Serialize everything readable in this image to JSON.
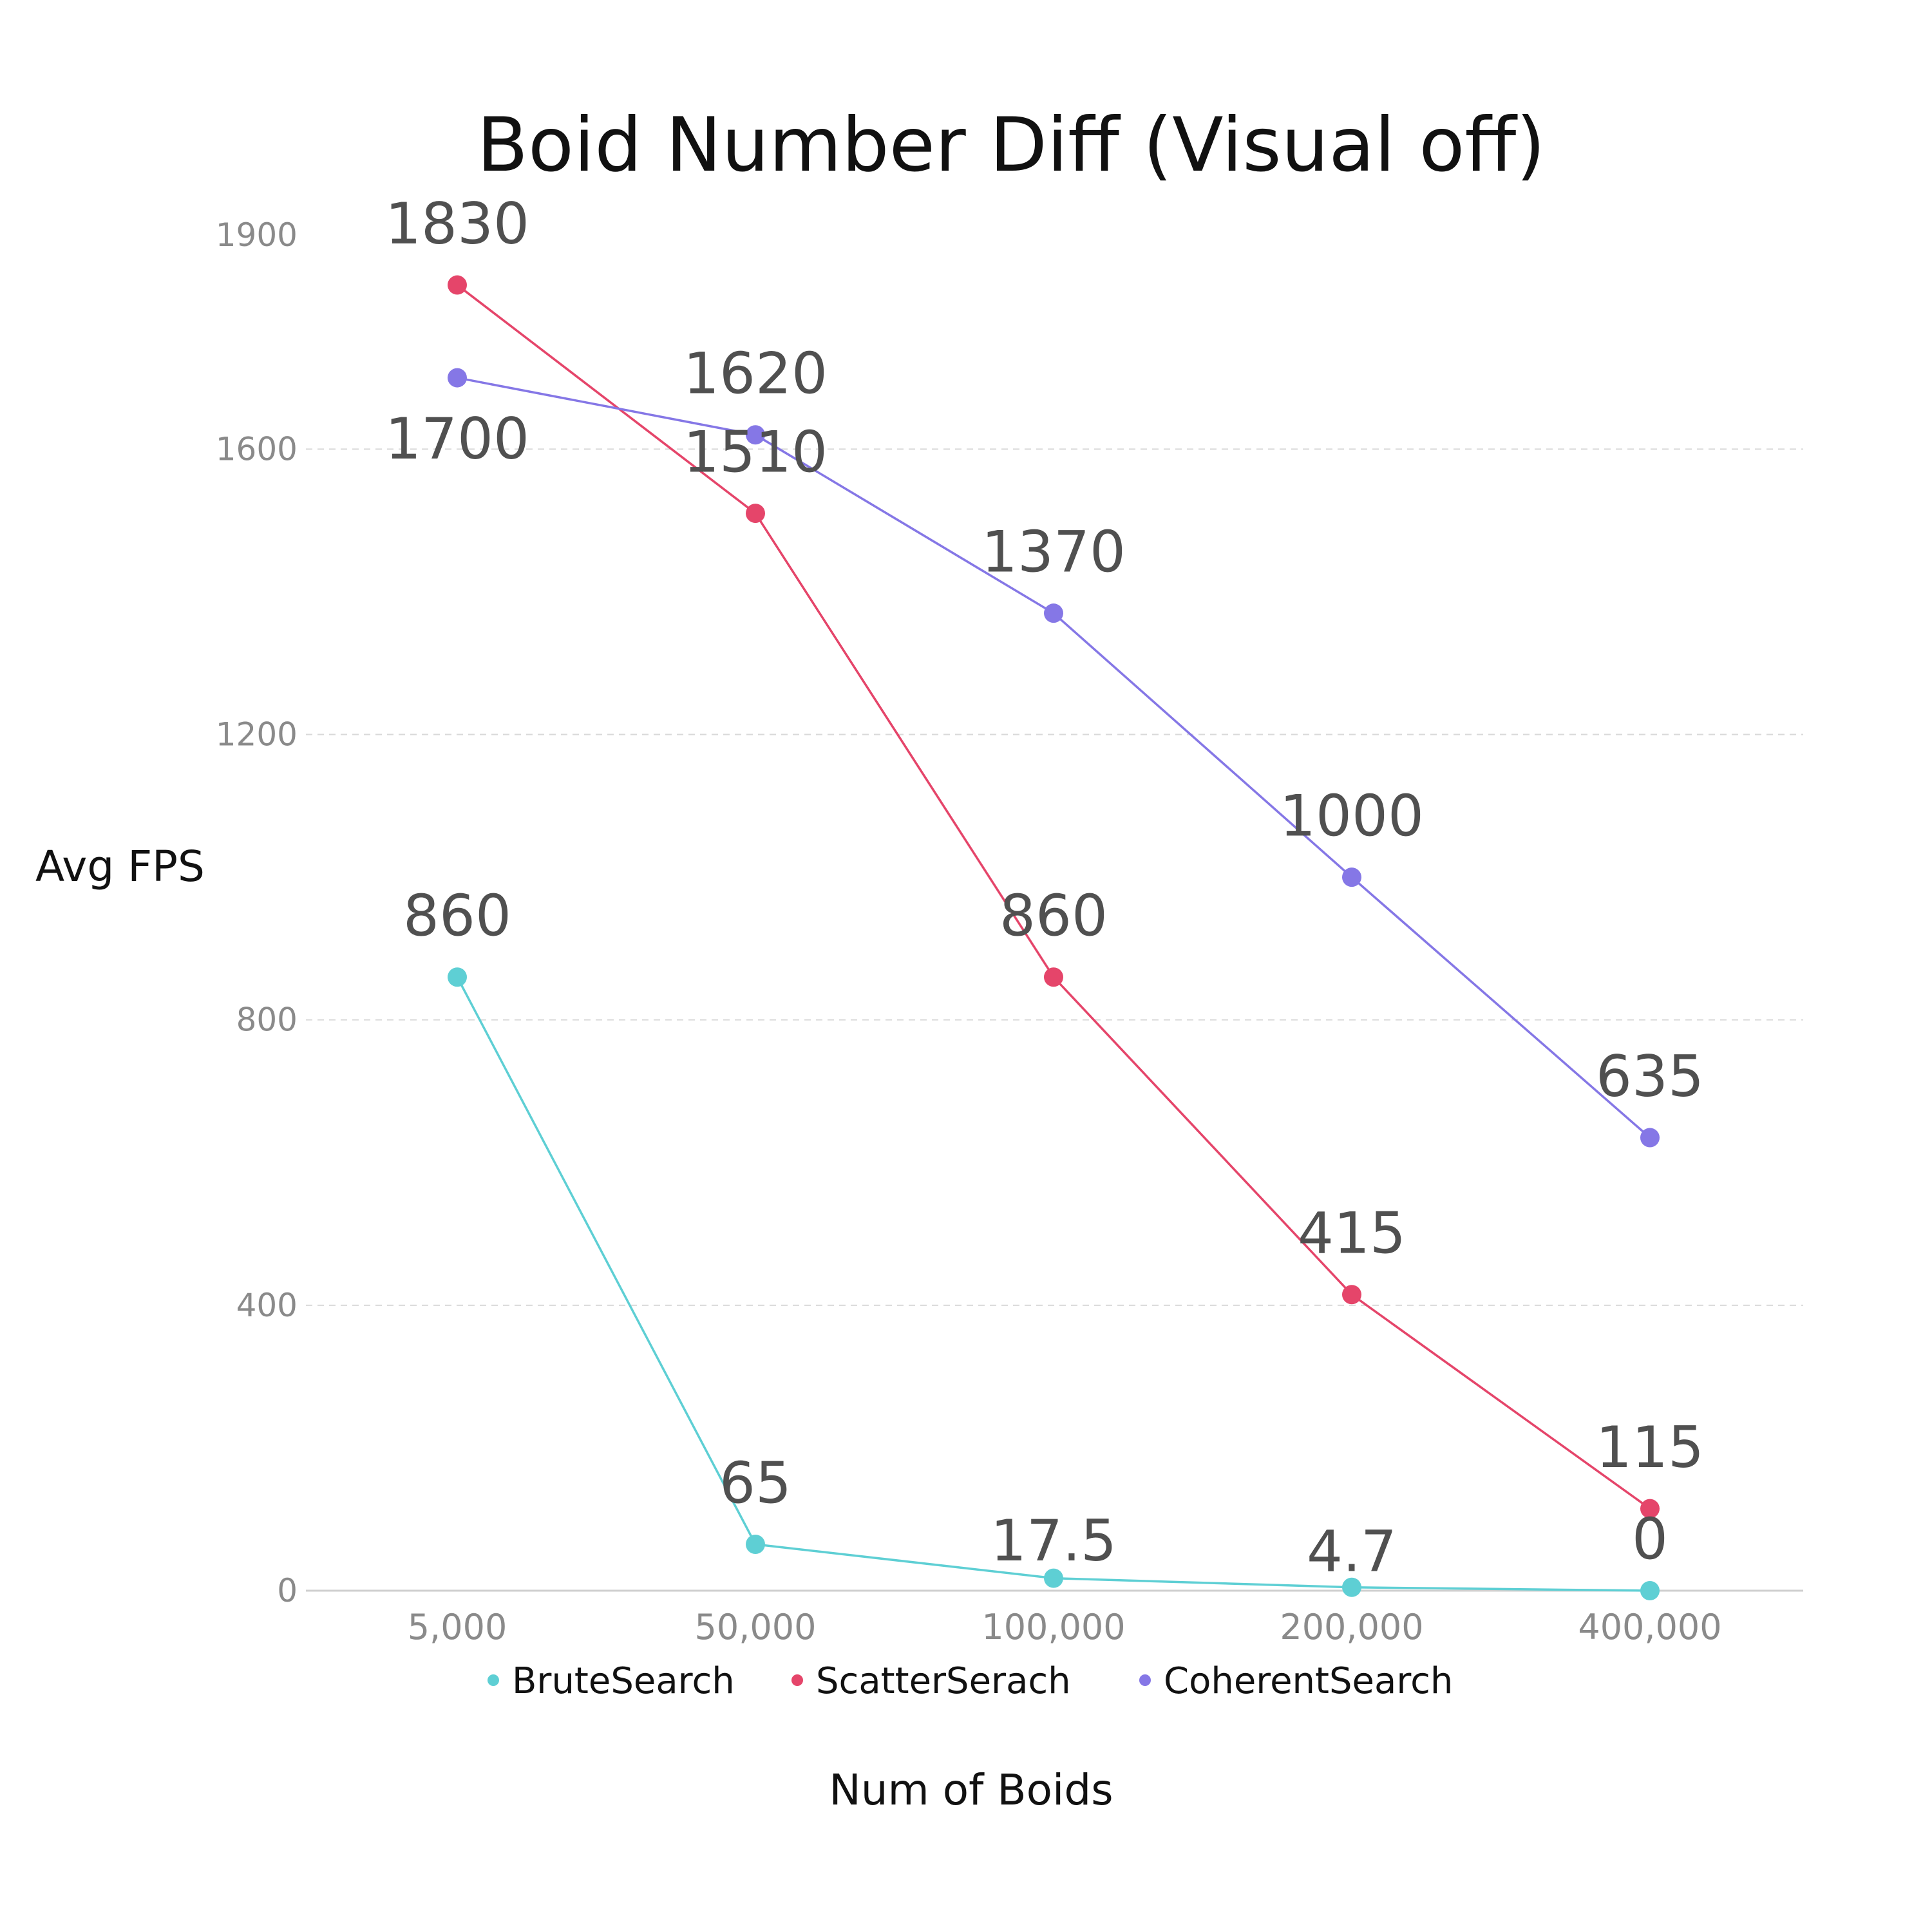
{
  "chart_data": {
    "type": "line",
    "title": "Boid Number Diff (Visual off)",
    "xlabel": "Num of Boids",
    "ylabel": "Avg FPS",
    "categories": [
      "5,000",
      "50,000",
      "100,000",
      "200,000",
      "400,000"
    ],
    "ylim": [
      0,
      1900
    ],
    "yticks": [
      0,
      400,
      800,
      1200,
      1600,
      1900
    ],
    "grid": "horizontal dashed",
    "legend_position": "bottom",
    "series": [
      {
        "name": "BruteSearch",
        "color": "#5ecfd4",
        "values": [
          860,
          65,
          17.5,
          4.7,
          0
        ],
        "labels": [
          "860",
          "65",
          "17.5",
          "4.7",
          "0"
        ]
      },
      {
        "name": "ScatterSerach",
        "color": "#e5456a",
        "values": [
          1830,
          1510,
          860,
          415,
          115
        ],
        "labels": [
          "1830",
          "1510",
          "860",
          "415",
          "115"
        ]
      },
      {
        "name": "CoherentSearch",
        "color": "#8577e6",
        "values": [
          1700,
          1620,
          1370,
          1000,
          635
        ],
        "labels": [
          "1700",
          "1620",
          "1370",
          "1000",
          "635"
        ]
      }
    ]
  }
}
